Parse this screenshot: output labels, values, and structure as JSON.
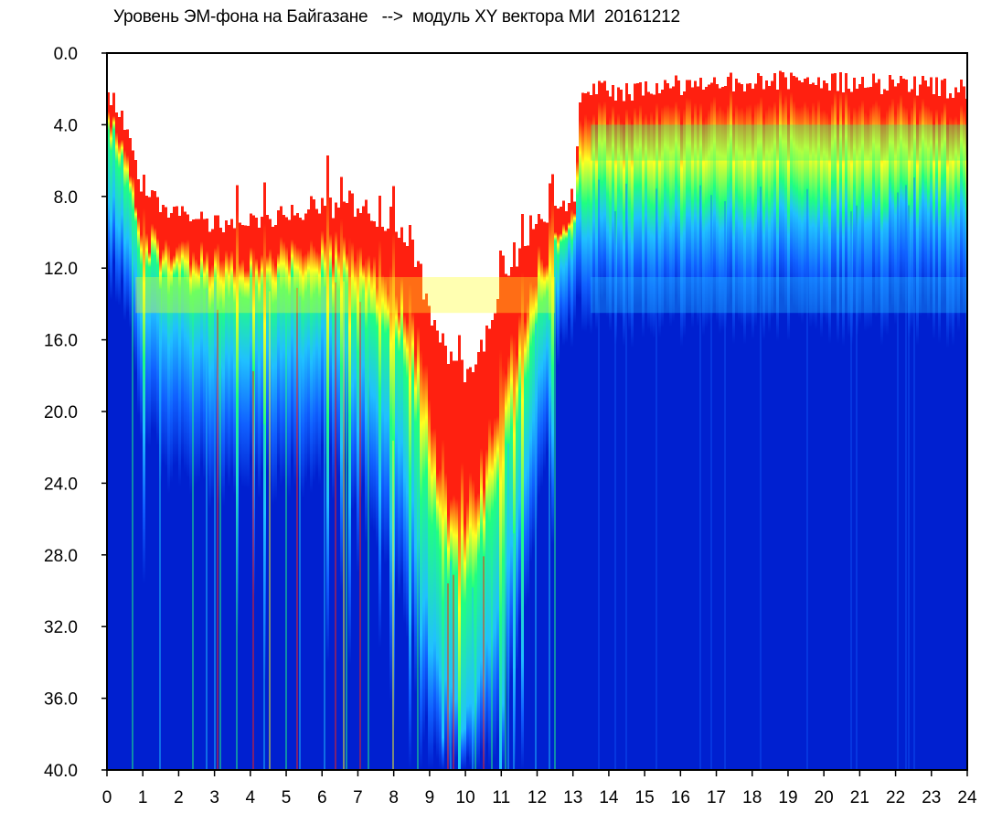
{
  "chart_data": {
    "type": "heatmap",
    "title": "Уровень ЭМ-фона на Байгазане   -->  модуль XY вектора МИ  20161212",
    "xlabel": "",
    "ylabel": "",
    "xlim": [
      0,
      24
    ],
    "ylim": [
      0,
      40
    ],
    "y_inverted": true,
    "x_ticks": [
      "0",
      "1",
      "2",
      "3",
      "4",
      "5",
      "6",
      "7",
      "8",
      "9",
      "10",
      "11",
      "12",
      "13",
      "14",
      "15",
      "16",
      "17",
      "18",
      "19",
      "20",
      "21",
      "22",
      "23",
      "24"
    ],
    "y_ticks": [
      "0.0",
      "4.0",
      "8.0",
      "12.0",
      "16.0",
      "20.0",
      "24.0",
      "28.0",
      "32.0",
      "36.0",
      "40.0"
    ],
    "grid": false,
    "legend": "none",
    "colormap": [
      "#ffffff",
      "#ff2010",
      "#ffff20",
      "#20ff80",
      "#20c0ff",
      "#1060ff",
      "#0020d0",
      "#000a8a"
    ],
    "profiles": [
      {
        "hour": 0.0,
        "empty_to": 2.0,
        "red_band": 1.0,
        "yellow_to": 4.0,
        "cyan_to": 8.0,
        "deep_from": 12.0
      },
      {
        "hour": 0.5,
        "empty_to": 4.0,
        "red_band": 1.5,
        "yellow_to": 7.0,
        "cyan_to": 10.0,
        "deep_from": 14.0
      },
      {
        "hour": 1.0,
        "empty_to": 8.0,
        "red_band": 2.5,
        "yellow_to": 12.0,
        "cyan_to": 15.0,
        "deep_from": 22.0
      },
      {
        "hour": 2.0,
        "empty_to": 9.0,
        "red_band": 2.0,
        "yellow_to": 13.0,
        "cyan_to": 16.0,
        "deep_from": 24.0
      },
      {
        "hour": 3.0,
        "empty_to": 9.5,
        "red_band": 2.0,
        "yellow_to": 13.5,
        "cyan_to": 17.0,
        "deep_from": 24.0
      },
      {
        "hour": 4.0,
        "empty_to": 9.5,
        "red_band": 2.0,
        "yellow_to": 13.5,
        "cyan_to": 17.0,
        "deep_from": 24.0
      },
      {
        "hour": 5.0,
        "empty_to": 9.0,
        "red_band": 2.0,
        "yellow_to": 13.0,
        "cyan_to": 16.5,
        "deep_from": 24.0
      },
      {
        "hour": 6.0,
        "empty_to": 8.5,
        "red_band": 2.0,
        "yellow_to": 13.0,
        "cyan_to": 16.0,
        "deep_from": 23.0
      },
      {
        "hour": 7.0,
        "empty_to": 9.0,
        "red_band": 2.5,
        "yellow_to": 14.0,
        "cyan_to": 18.0,
        "deep_from": 25.0
      },
      {
        "hour": 8.0,
        "empty_to": 9.5,
        "red_band": 3.0,
        "yellow_to": 15.0,
        "cyan_to": 20.0,
        "deep_from": 28.0
      },
      {
        "hour": 8.5,
        "empty_to": 11.0,
        "red_band": 4.0,
        "yellow_to": 19.0,
        "cyan_to": 26.0,
        "deep_from": 34.0
      },
      {
        "hour": 9.0,
        "empty_to": 15.0,
        "red_band": 6.0,
        "yellow_to": 26.0,
        "cyan_to": 33.0,
        "deep_from": 40.0
      },
      {
        "hour": 9.5,
        "empty_to": 17.0,
        "red_band": 7.0,
        "yellow_to": 29.0,
        "cyan_to": 36.0,
        "deep_from": 40.0
      },
      {
        "hour": 10.0,
        "empty_to": 18.0,
        "red_band": 7.0,
        "yellow_to": 30.0,
        "cyan_to": 37.0,
        "deep_from": 40.0
      },
      {
        "hour": 10.5,
        "empty_to": 16.0,
        "red_band": 6.0,
        "yellow_to": 27.0,
        "cyan_to": 34.0,
        "deep_from": 40.0
      },
      {
        "hour": 11.0,
        "empty_to": 13.0,
        "red_band": 5.0,
        "yellow_to": 23.0,
        "cyan_to": 30.0,
        "deep_from": 38.0
      },
      {
        "hour": 11.5,
        "empty_to": 11.0,
        "red_band": 4.0,
        "yellow_to": 19.0,
        "cyan_to": 25.0,
        "deep_from": 32.0
      },
      {
        "hour": 12.0,
        "empty_to": 9.0,
        "red_band": 2.5,
        "yellow_to": 14.0,
        "cyan_to": 18.0,
        "deep_from": 25.0
      },
      {
        "hour": 12.5,
        "empty_to": 9.0,
        "red_band": 1.5,
        "yellow_to": 11.0,
        "cyan_to": 13.0,
        "deep_from": 17.0
      },
      {
        "hour": 13.0,
        "empty_to": 8.5,
        "red_band": 0.8,
        "yellow_to": 9.5,
        "cyan_to": 10.5,
        "deep_from": 15.0
      },
      {
        "hour": 13.2,
        "empty_to": 2.0,
        "red_band": 1.5,
        "yellow_to": 8.0,
        "cyan_to": 10.0,
        "deep_from": 15.0
      },
      {
        "hour": 14.0,
        "empty_to": 2.2,
        "red_band": 1.5,
        "yellow_to": 8.0,
        "cyan_to": 10.0,
        "deep_from": 15.0
      },
      {
        "hour": 16.0,
        "empty_to": 1.8,
        "red_band": 1.3,
        "yellow_to": 8.0,
        "cyan_to": 9.5,
        "deep_from": 15.0
      },
      {
        "hour": 18.0,
        "empty_to": 1.6,
        "red_band": 1.3,
        "yellow_to": 8.0,
        "cyan_to": 9.5,
        "deep_from": 15.0
      },
      {
        "hour": 20.0,
        "empty_to": 1.6,
        "red_band": 1.3,
        "yellow_to": 8.0,
        "cyan_to": 9.5,
        "deep_from": 15.0
      },
      {
        "hour": 22.0,
        "empty_to": 1.8,
        "red_band": 1.3,
        "yellow_to": 8.0,
        "cyan_to": 9.0,
        "deep_from": 15.0
      },
      {
        "hour": 24.0,
        "empty_to": 2.0,
        "red_band": 1.5,
        "yellow_to": 7.5,
        "cyan_to": 9.0,
        "deep_from": 15.0
      }
    ],
    "secondary_bands": [
      {
        "from_hour": 0.8,
        "to_hour": 12.5,
        "depth": 13.5,
        "color": "#ffff20"
      },
      {
        "from_hour": 13.5,
        "to_hour": 24,
        "depth": 13.5,
        "color": "#20c0ff"
      },
      {
        "from_hour": 13.5,
        "to_hour": 24,
        "depth": 5.0,
        "color": "#20ff80"
      }
    ]
  }
}
